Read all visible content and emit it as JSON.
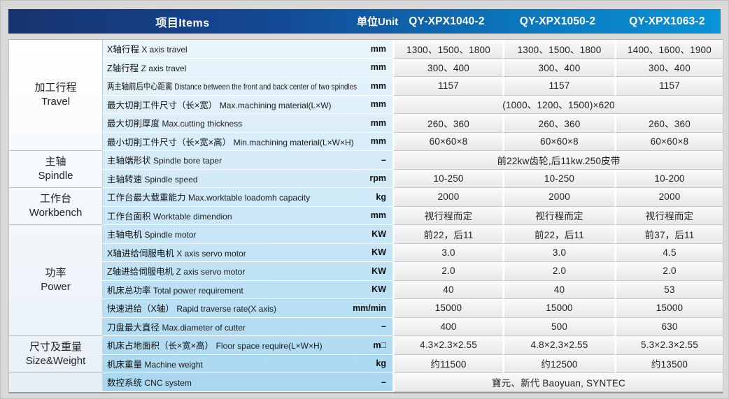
{
  "header": {
    "items_label": "项目Items",
    "unit_label": "单位Unit",
    "models": [
      "QY-XPX1040-2",
      "QY-XPX1050-2",
      "QY-XPX1063-2"
    ]
  },
  "groups": [
    {
      "zh": "加工行程",
      "en": "Travel",
      "rowspan": 6
    },
    {
      "zh": "主轴",
      "en": "Spindle",
      "rowspan": 2
    },
    {
      "zh": "工作台",
      "en": "Workbench",
      "rowspan": 2
    },
    {
      "zh": "功率",
      "en": "Power",
      "rowspan": 6
    },
    {
      "zh": "尺寸及重量",
      "en": "Size&Weight",
      "rowspan": 2
    },
    {
      "zh": "",
      "en": "",
      "rowspan": 1
    }
  ],
  "rows": [
    {
      "zh": "X轴行程",
      "en": "X axis travel",
      "unit": "mm",
      "values": [
        "1300、1500、1800",
        "1300、1500、1800",
        "1400、1600、1900"
      ]
    },
    {
      "zh": "Z轴行程",
      "en": "Z axis travel",
      "unit": "mm",
      "values": [
        "300、400",
        "300、400",
        "300、400"
      ]
    },
    {
      "zh": "两主轴前后中心距离",
      "en": "Distance between the front and back center of two spindles",
      "unit": "mm",
      "values": [
        "1157",
        "1157",
        "1157"
      ]
    },
    {
      "zh": "最大切削工件尺寸（长×宽）",
      "en": "Max.machining material(L×W)",
      "unit": "mm",
      "span": "(1000、1200、1500)×620"
    },
    {
      "zh": "最大切削厚度",
      "en": "Max.cutting thickness",
      "unit": "mm",
      "values": [
        "260、360",
        "260、360",
        "260、360"
      ]
    },
    {
      "zh": "最小切削工件尺寸（长×宽×高）",
      "en": "Min.machining material(L×W×H)",
      "unit": "mm",
      "values": [
        "60×60×8",
        "60×60×8",
        "60×60×8"
      ]
    },
    {
      "zh": "主轴端形状",
      "en": "Spindle bore taper",
      "unit": "–",
      "span": "前22kw齿轮,后11kw.250皮带"
    },
    {
      "zh": "主轴转速",
      "en": "Spindle speed",
      "unit": "rpm",
      "values": [
        "10-250",
        "10-250",
        "10-200"
      ]
    },
    {
      "zh": "工作台最大载重能力",
      "en": "Max.worktable loadomh capacity",
      "unit": "kg",
      "values": [
        "2000",
        "2000",
        "2000"
      ]
    },
    {
      "zh": "工作台面积",
      "en": "Worktable dimendion",
      "unit": "mm",
      "values": [
        "视行程而定",
        "视行程而定",
        "视行程而定"
      ]
    },
    {
      "zh": "主轴电机",
      "en": "Spindle motor",
      "unit": "KW",
      "values": [
        "前22，后11",
        "前22，后11",
        "前37，后11"
      ]
    },
    {
      "zh": "X轴进给伺服电机",
      "en": "X axis servo motor",
      "unit": "KW",
      "values": [
        "3.0",
        "3.0",
        "4.5"
      ]
    },
    {
      "zh": "Z轴进给伺服电机",
      "en": "Z axis servo motor",
      "unit": "KW",
      "values": [
        "2.0",
        "2.0",
        "2.0"
      ]
    },
    {
      "zh": "机床总功率",
      "en": "Total power requirement",
      "unit": "KW",
      "values": [
        "40",
        "40",
        "53"
      ]
    },
    {
      "zh": "快速进给（X轴）",
      "en": "Rapid traverse rate(X axis)",
      "unit": "mm/min",
      "values": [
        "15000",
        "15000",
        "15000"
      ]
    },
    {
      "zh": "刀盘最大直径",
      "en": "Max.diameter of cutter",
      "unit": "–",
      "values": [
        "400",
        "500",
        "630"
      ]
    },
    {
      "zh": "机床占地面积（长×宽×高）",
      "en": "Floor space require(L×W×H)",
      "unit": "m□",
      "values": [
        "4.3×2.3×2.55",
        "4.8×2.3×2.55",
        "5.3×2.3×2.55"
      ]
    },
    {
      "zh": "机床重量",
      "en": "Machine weight",
      "unit": "kg",
      "values": [
        "约11500",
        "约12500",
        "约13500"
      ]
    },
    {
      "zh": "数控系统",
      "en": "CNC system",
      "unit": "–",
      "span": "寶元、新代 Baoyuan, SYNTEC"
    }
  ],
  "colors": {
    "header_gradient_left": "#16336f",
    "header_gradient_right": "#0993d8",
    "header_text": "#ffffff",
    "label_column_top": "#eaf5fc",
    "label_column_bottom": "#a7d7f0",
    "data_cell_bg": "#f0f0f0",
    "page_bg": "#d9d9d9"
  }
}
